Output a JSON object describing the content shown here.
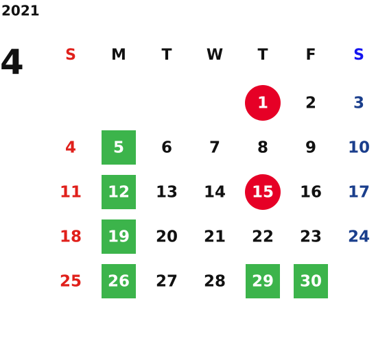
{
  "year": "2021",
  "month": "4",
  "weekdays": [
    "S",
    "M",
    "T",
    "W",
    "T",
    "F",
    "S"
  ],
  "weeks": [
    [
      null,
      null,
      null,
      null,
      {
        "day": "1",
        "highlight": "circle"
      },
      {
        "day": "2"
      },
      {
        "day": "3"
      }
    ],
    [
      {
        "day": "4"
      },
      {
        "day": "5",
        "highlight": "square"
      },
      {
        "day": "6"
      },
      {
        "day": "7"
      },
      {
        "day": "8"
      },
      {
        "day": "9"
      },
      {
        "day": "10"
      }
    ],
    [
      {
        "day": "11"
      },
      {
        "day": "12",
        "highlight": "square"
      },
      {
        "day": "13"
      },
      {
        "day": "14"
      },
      {
        "day": "15",
        "highlight": "circle"
      },
      {
        "day": "16"
      },
      {
        "day": "17"
      }
    ],
    [
      {
        "day": "18"
      },
      {
        "day": "19",
        "highlight": "square"
      },
      {
        "day": "20"
      },
      {
        "day": "21"
      },
      {
        "day": "22"
      },
      {
        "day": "23"
      },
      {
        "day": "24"
      }
    ],
    [
      {
        "day": "25"
      },
      {
        "day": "26",
        "highlight": "square"
      },
      {
        "day": "27"
      },
      {
        "day": "28"
      },
      {
        "day": "29",
        "highlight": "square"
      },
      {
        "day": "30",
        "highlight": "square"
      },
      null
    ]
  ],
  "colors": {
    "sunday": "#e0201b",
    "saturday": "#1a3e8c",
    "saturday_header": "#1414f0",
    "weekday": "#111111",
    "circle": "#e60026",
    "square": "#3cb44b",
    "highlight_text": "#ffffff"
  }
}
